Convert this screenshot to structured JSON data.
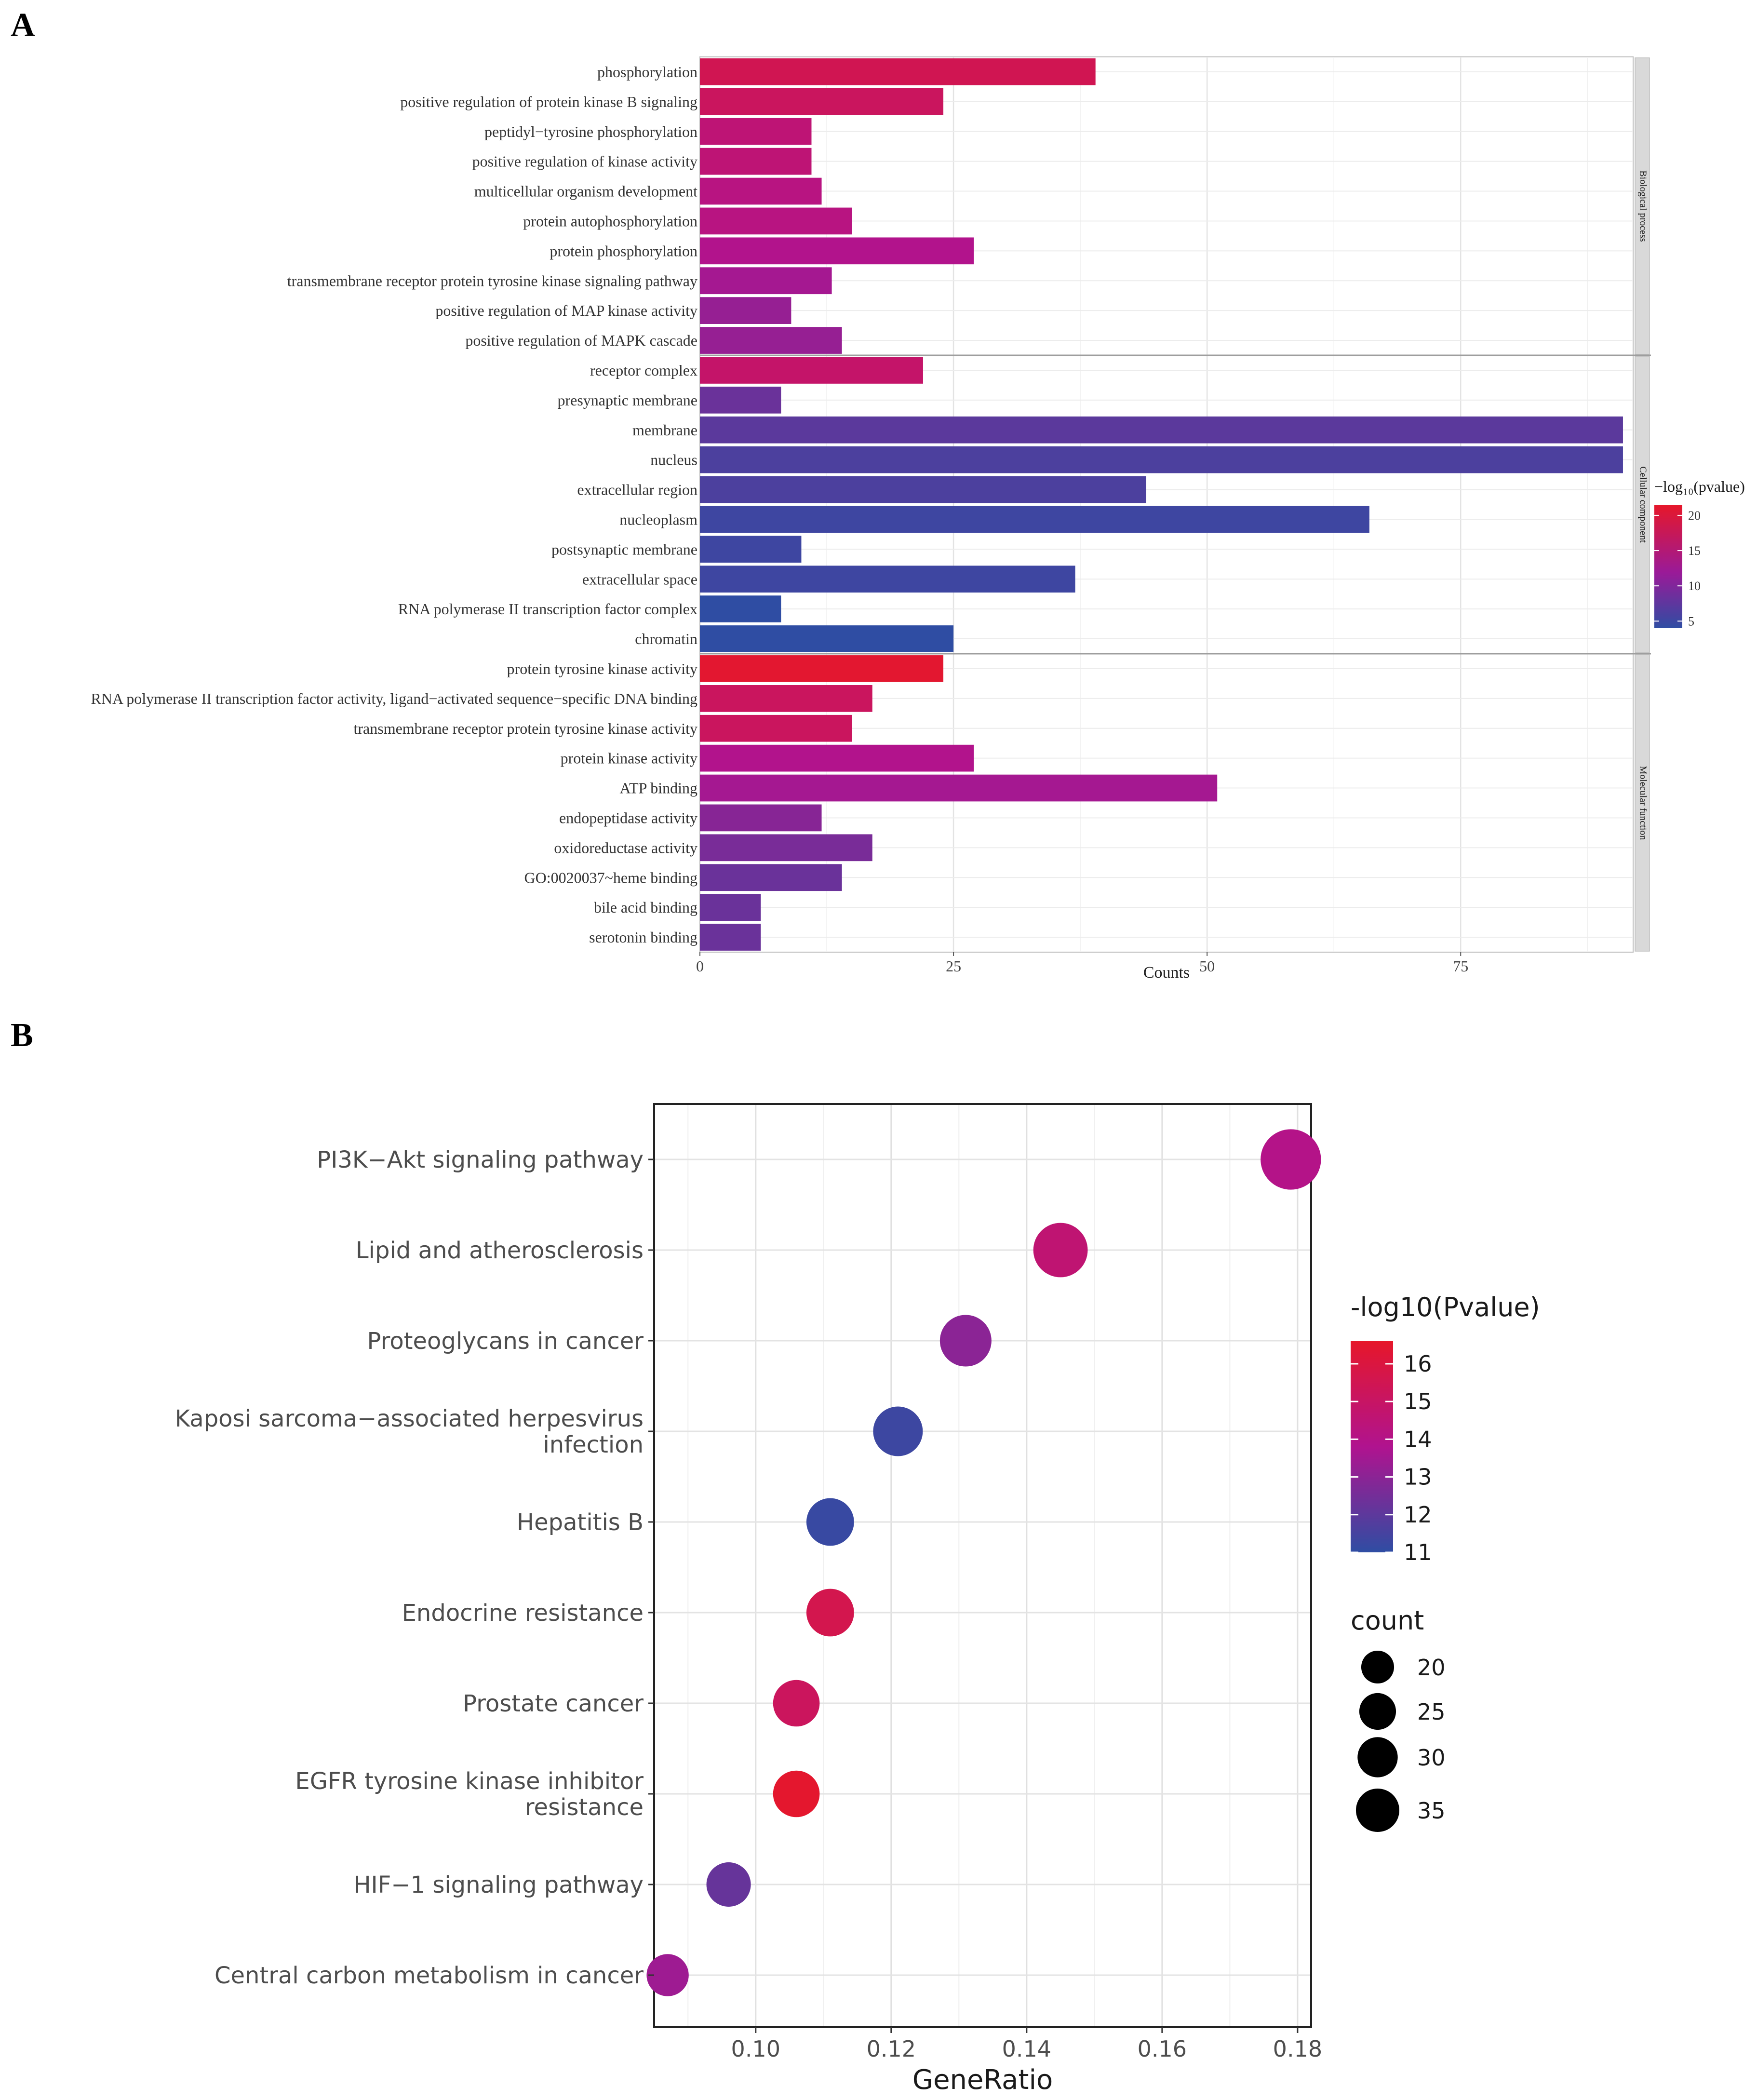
{
  "panel_a": {
    "letter": "A"
  },
  "panel_b": {
    "letter": "B"
  },
  "chart_data": [
    {
      "type": "bar",
      "orientation": "horizontal",
      "title": "",
      "xlabel": "Counts",
      "ylabel": "",
      "xlim": [
        0,
        92
      ],
      "xticks": [
        0,
        25,
        50,
        75
      ],
      "grid": true,
      "legend": {
        "title": "−log₁₀(pvalue)",
        "position": "right",
        "range": [
          4,
          21.5
        ],
        "ticks": [
          5,
          10,
          15,
          20
        ],
        "low_color": "#2f4da3",
        "mid_color": "#b0138f",
        "high_color": "#e6172a"
      },
      "facets": [
        {
          "name": "Biological process",
          "categories": [
            "phosphorylation",
            "positive regulation of protein kinase B signaling",
            "peptidyl−tyrosine phosphorylation",
            "positive regulation of kinase activity",
            "multicellular organism development",
            "protein autophosphorylation",
            "protein phosphorylation",
            "transmembrane receptor protein tyrosine kinase signaling pathway",
            "positive regulation of MAP kinase activity",
            "positive regulation of MAPK cascade"
          ],
          "values": [
            39,
            24,
            11,
            11,
            12,
            15,
            27,
            13,
            9,
            14
          ],
          "neg_log10_p": [
            18,
            17,
            15,
            15,
            14,
            14,
            13,
            12,
            11,
            11
          ]
        },
        {
          "name": "Cellular component",
          "categories": [
            "receptor complex",
            "presynaptic membrane",
            "membrane",
            "nucleus",
            "extracellular region",
            "nucleoplasm",
            "postsynaptic membrane",
            "extracellular space",
            "RNA polymerase II transcription factor complex",
            "chromatin"
          ],
          "values": [
            22,
            8,
            91,
            91,
            44,
            66,
            10,
            37,
            8,
            25
          ],
          "neg_log10_p": [
            16,
            8,
            7,
            6,
            6,
            5,
            5,
            5,
            4,
            4
          ]
        },
        {
          "name": "Molecular function",
          "categories": [
            "protein tyrosine kinase activity",
            "RNA polymerase II transcription factor activity, ligand−activated sequence−specific DNA binding",
            "transmembrane receptor protein tyrosine kinase activity",
            "protein kinase activity",
            "ATP binding",
            "endopeptidase activity",
            "oxidoreductase activity",
            "GO:0020037~heme binding",
            "bile acid binding",
            "serotonin binding"
          ],
          "values": [
            24,
            17,
            15,
            27,
            51,
            12,
            17,
            14,
            6,
            6
          ],
          "neg_log10_p": [
            21,
            17,
            17,
            13,
            12,
            10,
            9,
            8,
            8,
            8
          ]
        }
      ]
    },
    {
      "type": "scatter",
      "subtype": "dot",
      "title": "",
      "xlabel": "GeneRatio",
      "ylabel": "",
      "xlim": [
        0.085,
        0.182
      ],
      "xticks": [
        0.1,
        0.12,
        0.14,
        0.16,
        0.18
      ],
      "xtick_labels": [
        "0.10",
        "0.12",
        "0.14",
        "0.16",
        "0.18"
      ],
      "grid": true,
      "categories": [
        "PI3K−Akt signaling pathway",
        "Lipid and atherosclerosis",
        "Proteoglycans in cancer",
        "Kaposi sarcoma−associated herpesvirus infection",
        "Hepatitis B",
        "Endocrine resistance",
        "Prostate cancer",
        "EGFR tyrosine kinase inhibitor resistance",
        "HIF−1 signaling pathway",
        "Central carbon metabolism in cancer"
      ],
      "category_lines": [
        [
          "PI3K−Akt signaling pathway"
        ],
        [
          "Lipid and atherosclerosis"
        ],
        [
          "Proteoglycans in cancer"
        ],
        [
          "Kaposi sarcoma−associated herpesvirus",
          "infection"
        ],
        [
          "Hepatitis B"
        ],
        [
          "Endocrine resistance"
        ],
        [
          "Prostate cancer"
        ],
        [
          "EGFR tyrosine kinase inhibitor",
          "resistance"
        ],
        [
          "HIF−1 signaling pathway"
        ],
        [
          "Central carbon metabolism in cancer"
        ]
      ],
      "gene_ratio": [
        0.179,
        0.145,
        0.131,
        0.121,
        0.111,
        0.111,
        0.106,
        0.106,
        0.096,
        0.087
      ],
      "count": [
        37,
        30,
        27,
        25,
        23,
        23,
        22,
        22,
        20,
        18
      ],
      "neg_log10_p": [
        14.0,
        14.6,
        13.0,
        11.3,
        11.2,
        15.6,
        15.2,
        16.5,
        12.2,
        13.4
      ],
      "color_legend": {
        "title": "-log10(Pvalue)",
        "range": [
          11,
          16.6
        ],
        "ticks": [
          11,
          12,
          13,
          14,
          15,
          16
        ]
      },
      "size_legend": {
        "title": "count",
        "values": [
          20,
          25,
          30,
          35
        ]
      }
    }
  ]
}
